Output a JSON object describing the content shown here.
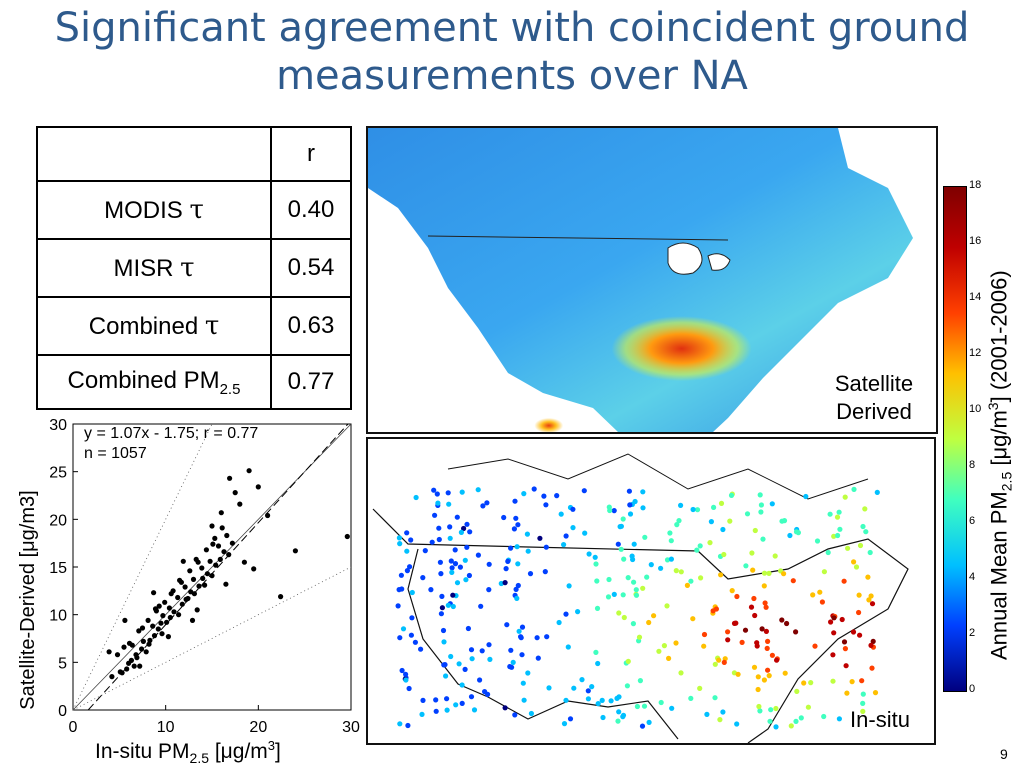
{
  "slide": {
    "title_line1": "Significant agreement with coincident ground",
    "title_line2": "measurements over NA",
    "page_number": "9"
  },
  "table": {
    "header": [
      "",
      "r"
    ],
    "rows": [
      {
        "label": "MODIS ",
        "symbol": "τ",
        "sub": "",
        "value": "0.40"
      },
      {
        "label": "MISR ",
        "symbol": "τ",
        "sub": "",
        "value": "0.54"
      },
      {
        "label": "Combined ",
        "symbol": "τ",
        "sub": "",
        "value": "0.63"
      },
      {
        "label": "Combined PM",
        "symbol": "",
        "sub": "2.5",
        "value": "0.77"
      }
    ]
  },
  "maps": {
    "satellite_label_line1": "Satellite",
    "satellite_label_line2": "Derived",
    "insitu_label": "In-situ"
  },
  "colorbar": {
    "ticks": [
      "18",
      "16",
      "14",
      "12",
      "10",
      "8",
      "6",
      "4",
      "2",
      "0"
    ],
    "label_main": "Annual Mean PM",
    "label_sub": "2.5",
    "label_unit_a": " [μg/m",
    "label_sup": "3",
    "label_unit_b": "] (2001-2006)",
    "colors": [
      "#00007f",
      "#0040ff",
      "#00c0ff",
      "#40ffbf",
      "#bfff40",
      "#ffc000",
      "#ff4000",
      "#bf0000",
      "#7f0000"
    ]
  },
  "chart_data": {
    "type": "scatter",
    "title": "",
    "xlabel_main": "In-situ PM",
    "xlabel_sub": "2.5",
    "xlabel_unit_a": " [μg/m",
    "xlabel_sup": "3",
    "xlabel_unit_b": "]",
    "ylabel": "Satellite-Derived [μg/m3]",
    "xlim": [
      0,
      30
    ],
    "ylim": [
      0,
      30
    ],
    "xticks": [
      "0",
      "10",
      "20",
      "30"
    ],
    "yticks": [
      "0",
      "5",
      "10",
      "15",
      "20",
      "25",
      "30"
    ],
    "annotation_line1": "y = 1.07x - 1.75; r = 0.77",
    "annotation_line2": "n = 1057",
    "fit": {
      "slope": 1.07,
      "intercept": -1.75
    },
    "series": [
      {
        "x": [
          4.2,
          5.1,
          5.8,
          6.3,
          6.9,
          7.4,
          7.9,
          8.3,
          8.8,
          9.2,
          9.6,
          10.1,
          10.5,
          10.9,
          11.4,
          11.8,
          12.2,
          12.7,
          13.1,
          13.6,
          14.0,
          14.5,
          15.0,
          15.4,
          15.9,
          16.3,
          16.8,
          17.2,
          4.8,
          5.5,
          6.1,
          6.6,
          7.1,
          7.6,
          8.1,
          8.6,
          9.0,
          9.5,
          9.9,
          10.4,
          10.8,
          11.3,
          11.7,
          12.1,
          12.6,
          13.0,
          13.5,
          13.9,
          14.4,
          14.8,
          15.3,
          15.7,
          16.1,
          16.6,
          5.3,
          6.0,
          6.8,
          7.5,
          8.2,
          8.9,
          9.7,
          10.6,
          11.5,
          12.4,
          13.3,
          14.2,
          15.1,
          16.0,
          3.9,
          5.6,
          7.2,
          8.7,
          10.3,
          11.9,
          13.4,
          15.0,
          16.5,
          18.0,
          19.5,
          21.0,
          22.4,
          24.0,
          29.6,
          17.5,
          18.5,
          19.0,
          20.0,
          6.4,
          9.3,
          12.9,
          16.9
        ],
        "y": [
          3.5,
          4.0,
          4.3,
          5.2,
          5.5,
          6.4,
          6.1,
          7.3,
          7.8,
          8.5,
          8.0,
          9.2,
          9.7,
          10.3,
          10.0,
          11.1,
          11.6,
          12.4,
          12.2,
          13.0,
          13.8,
          14.3,
          14.1,
          15.2,
          15.8,
          16.6,
          16.3,
          17.5,
          5.8,
          6.6,
          7.0,
          4.6,
          8.3,
          7.2,
          9.4,
          8.8,
          10.4,
          9.1,
          11.3,
          10.7,
          12.5,
          11.8,
          13.4,
          12.9,
          14.6,
          13.7,
          15.5,
          14.9,
          16.8,
          15.6,
          18.0,
          17.2,
          19.1,
          18.3,
          3.9,
          4.9,
          5.8,
          8.6,
          6.9,
          10.6,
          9.9,
          12.2,
          13.6,
          11.7,
          15.8,
          13.1,
          17.4,
          20.7,
          6.1,
          9.4,
          4.6,
          12.3,
          7.7,
          15.6,
          10.5,
          19.3,
          13.2,
          21.6,
          14.8,
          20.4,
          11.9,
          16.7,
          18.2,
          22.8,
          15.5,
          25.1,
          23.4,
          6.8,
          10.9,
          9.4,
          24.3
        ]
      }
    ]
  }
}
